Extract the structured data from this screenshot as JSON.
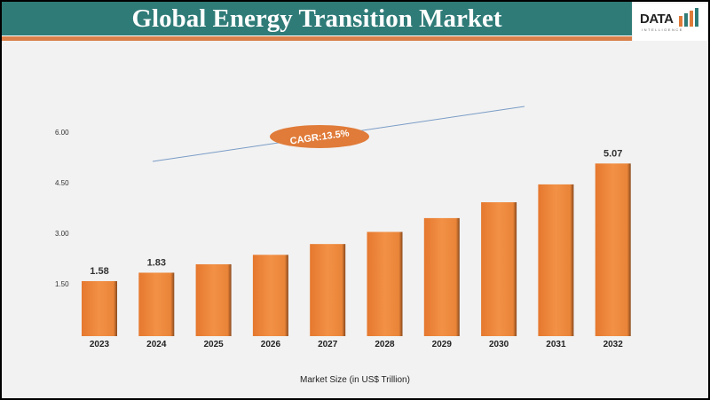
{
  "header": {
    "title": "Global Energy Transition Market",
    "logo_text": "DATA",
    "logo_subtext": "INTELLIGENCE"
  },
  "colors": {
    "header": "#2f7b78",
    "stripe": "#d9804a",
    "bar": "#ee8a3c",
    "cagr_badge": "#e07b39",
    "trend_line": "#7a9cc6"
  },
  "chart_data": {
    "type": "bar",
    "title": "Global Energy Transition Market",
    "xlabel": "Market Size (in US$ Trillion)",
    "ylabel": "",
    "categories": [
      "2023",
      "2024",
      "2025",
      "2026",
      "2027",
      "2028",
      "2029",
      "2030",
      "2031",
      "2032"
    ],
    "values": [
      1.58,
      1.83,
      2.08,
      2.36,
      2.68,
      3.04,
      3.45,
      3.92,
      4.45,
      5.07
    ],
    "data_labels": {
      "2023": "1.58",
      "2024": "1.83",
      "2032": "5.07"
    },
    "yticks": [
      "1.50",
      "3.00",
      "4.50",
      "6.00"
    ],
    "ylim": [
      0,
      6
    ],
    "grid": false,
    "annotation": "CAGR:13.5%"
  }
}
